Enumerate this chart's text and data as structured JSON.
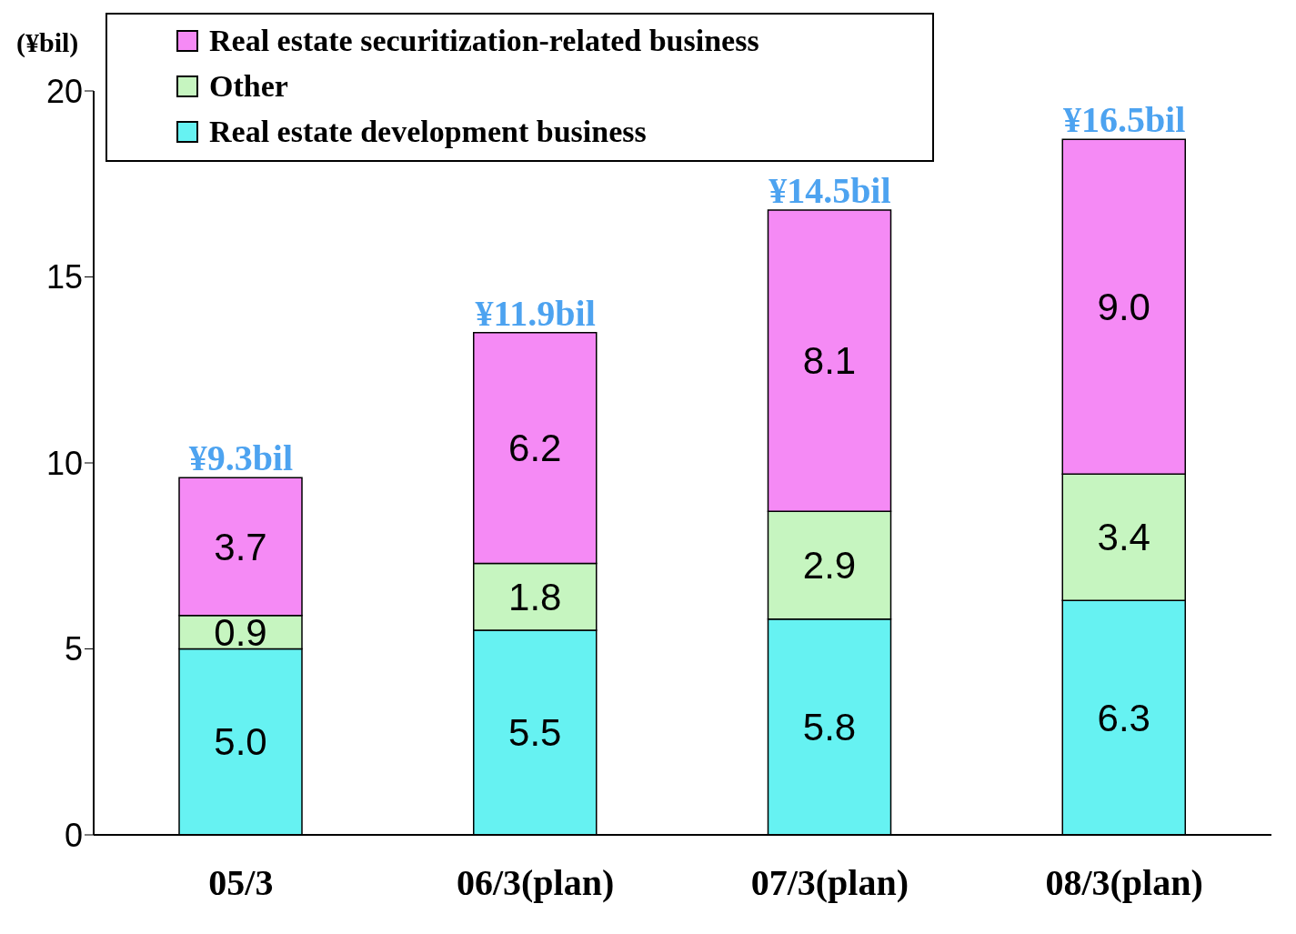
{
  "chart_data": {
    "type": "bar",
    "stacked": true,
    "ylabel": "(¥bil)",
    "categories": [
      "05/3",
      "06/3(plan)",
      "07/3(plan)",
      "08/3(plan)"
    ],
    "series": [
      {
        "name": "Real estate development business",
        "color": "#66f2f2",
        "values": [
          5.0,
          5.5,
          5.8,
          6.3
        ],
        "value_labels": [
          "5.0",
          "5.5",
          "5.8",
          "6.3"
        ]
      },
      {
        "name": "Other",
        "color": "#c6f5c0",
        "values": [
          0.9,
          1.8,
          2.9,
          3.4
        ],
        "value_labels": [
          "0.9",
          "1.8",
          "2.9",
          "3.4"
        ]
      },
      {
        "name": "Real estate securitization-related business",
        "color": "#f58af5",
        "values": [
          3.7,
          6.2,
          8.1,
          9.0
        ],
        "value_labels": [
          "3.7",
          "6.2",
          "8.1",
          "9.0"
        ]
      }
    ],
    "annotations": [
      {
        "text": "¥9.3bil",
        "x": "05/3",
        "y": 9.6
      },
      {
        "text": "¥11.9bil",
        "x": "06/3(plan)",
        "y": 13.5
      },
      {
        "text": "¥14.5bil",
        "x": "07/3(plan)",
        "y": 16.8
      },
      {
        "text": "¥16.5bil",
        "x": "08/3(plan)",
        "y": 18.7
      }
    ],
    "ylim": [
      0,
      20
    ],
    "yticks": [
      0,
      5,
      10,
      15,
      20
    ],
    "grid": false,
    "legend": "top left"
  }
}
